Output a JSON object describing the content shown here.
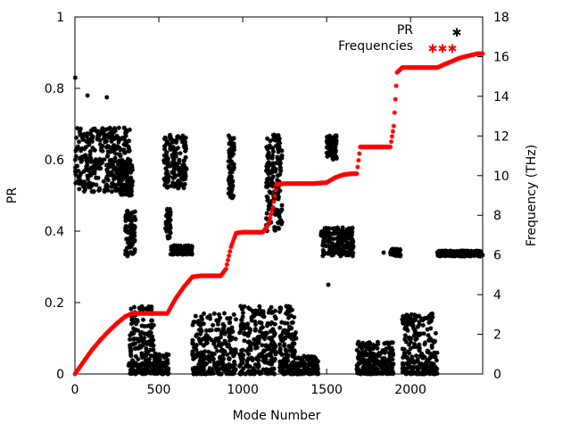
{
  "chart_data": {
    "type": "scatter",
    "xlabel": "Mode Number",
    "ylabel_left": "PR",
    "ylabel_right": "Frequency (THz)",
    "xlim": [
      0,
      2430
    ],
    "ylim_left": [
      0,
      1
    ],
    "ylim_right": [
      0,
      18
    ],
    "x_ticks": [
      0,
      500,
      1000,
      1500,
      2000
    ],
    "y_left_ticks": [
      0,
      0.2,
      0.4,
      0.6,
      0.8,
      1
    ],
    "y_left_tick_labels": [
      "0",
      "0.2",
      "0.4",
      "0.6",
      "0.8",
      "1"
    ],
    "y_right_ticks": [
      0,
      2,
      4,
      6,
      8,
      10,
      12,
      14,
      16,
      18
    ],
    "grid": false,
    "legend_position": "top-right",
    "series": [
      {
        "name": "PR",
        "axis": "left",
        "color": "#000000",
        "marker": "star",
        "clusters": [
          {
            "x": [
              0,
              330
            ],
            "y": [
              0.51,
              0.69
            ]
          },
          {
            "x": [
              270,
              345
            ],
            "y": [
              0.5,
              0.6
            ]
          },
          {
            "x": [
              300,
              360
            ],
            "y": [
              0.33,
              0.46
            ]
          },
          {
            "x": [
              530,
              665
            ],
            "y": [
              0.52,
              0.67
            ]
          },
          {
            "x": [
              540,
              570
            ],
            "y": [
              0.38,
              0.47
            ]
          },
          {
            "x": [
              570,
              700
            ],
            "y": [
              0.335,
              0.36
            ]
          },
          {
            "x": [
              915,
              950
            ],
            "y": [
              0.49,
              0.67
            ]
          },
          {
            "x": [
              1140,
              1235
            ],
            "y": [
              0.4,
              0.67
            ]
          },
          {
            "x": [
              1465,
              1660
            ],
            "y": [
              0.33,
              0.41
            ]
          },
          {
            "x": [
              1500,
              1560
            ],
            "y": [
              0.6,
              0.67
            ]
          },
          {
            "x": [
              1880,
              1940
            ],
            "y": [
              0.33,
              0.35
            ]
          },
          {
            "x": [
              2160,
              2430
            ],
            "y": [
              0.33,
              0.345
            ]
          },
          {
            "x": [
              320,
              470
            ],
            "y": [
              0.0,
              0.19
            ]
          },
          {
            "x": [
              470,
              560
            ],
            "y": [
              0.0,
              0.06
            ]
          },
          {
            "x": [
              700,
              960
            ],
            "y": [
              0.0,
              0.17
            ]
          },
          {
            "x": [
              980,
              1200
            ],
            "y": [
              0.0,
              0.19
            ]
          },
          {
            "x": [
              1220,
              1320
            ],
            "y": [
              0.0,
              0.19
            ]
          },
          {
            "x": [
              1320,
              1450
            ],
            "y": [
              0.0,
              0.05
            ]
          },
          {
            "x": [
              1680,
              1900
            ],
            "y": [
              0.0,
              0.09
            ]
          },
          {
            "x": [
              1950,
              2160
            ],
            "y": [
              0.0,
              0.17
            ]
          }
        ],
        "outliers": [
          {
            "x": 2,
            "y": 0.83
          },
          {
            "x": 75,
            "y": 0.78
          },
          {
            "x": 190,
            "y": 0.775
          },
          {
            "x": 2,
            "y": 0.6
          },
          {
            "x": 1510,
            "y": 0.25
          },
          {
            "x": 1840,
            "y": 0.34
          }
        ]
      },
      {
        "name": "Frequencies",
        "axis": "right",
        "color": "#ff0000",
        "marker": "star",
        "x": [
          0,
          50,
          100,
          150,
          200,
          250,
          300,
          340,
          400,
          460,
          550,
          600,
          650,
          700,
          750,
          800,
          870,
          900,
          930,
          960,
          1000,
          1080,
          1120,
          1150,
          1180,
          1200,
          1250,
          1300,
          1350,
          1420,
          1500,
          1550,
          1600,
          1650,
          1680,
          1700,
          1800,
          1850,
          1880,
          1900,
          1920,
          1950,
          2050,
          2100,
          2160,
          2200,
          2300,
          2400,
          2430
        ],
        "y": [
          0,
          0.6,
          1.2,
          1.7,
          2.15,
          2.55,
          2.9,
          3.05,
          3.05,
          3.05,
          3.05,
          3.8,
          4.4,
          4.9,
          4.95,
          4.95,
          4.95,
          5.3,
          6.4,
          7.1,
          7.15,
          7.15,
          7.15,
          7.5,
          8.4,
          9.55,
          9.6,
          9.6,
          9.6,
          9.6,
          9.65,
          9.9,
          10.05,
          10.1,
          10.1,
          11.45,
          11.45,
          11.45,
          11.45,
          12.5,
          15.2,
          15.45,
          15.45,
          15.45,
          15.45,
          15.6,
          15.95,
          16.15,
          16.15
        ]
      }
    ]
  }
}
